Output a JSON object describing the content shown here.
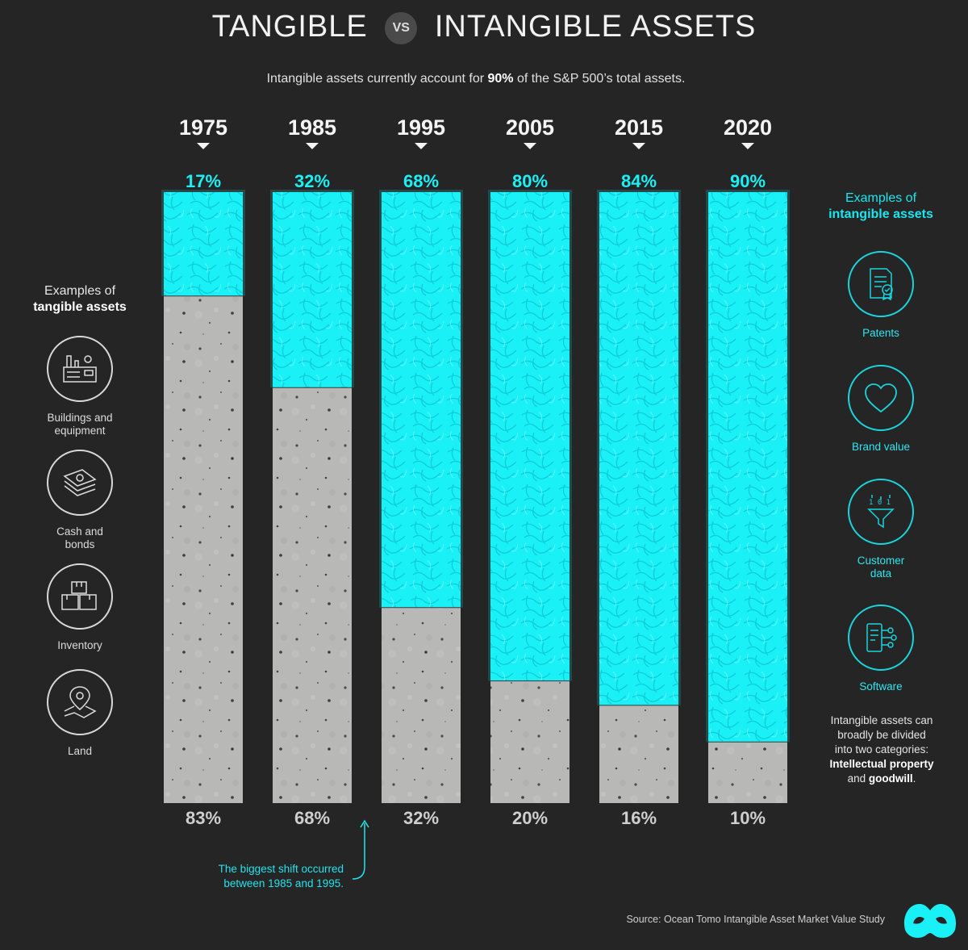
{
  "title": {
    "left": "TANGIBLE",
    "vs": "VS",
    "right": "INTANGIBLE ASSETS"
  },
  "subtitle": {
    "pre": "Intangible assets currently account for ",
    "bold": "90%",
    "post": " of the S&P 500’s total assets."
  },
  "chart_data": {
    "type": "bar",
    "stacked": true,
    "categories": [
      "1975",
      "1985",
      "1995",
      "2005",
      "2015",
      "2020"
    ],
    "series": [
      {
        "name": "",
        "values": [
          17,
          32,
          68,
          80,
          84,
          90
        ],
        "color": "#19f1f7"
      },
      {
        "name": "",
        "values": [
          83,
          68,
          32,
          20,
          16,
          10
        ],
        "color": "#b9b9b9"
      }
    ],
    "top_labels": [
      "17%",
      "32%",
      "68%",
      "80%",
      "84%",
      "90%"
    ],
    "bottom_labels": [
      "83%",
      "68%",
      "32%",
      "20%",
      "16%",
      "10%"
    ],
    "ylim": [
      0,
      100
    ],
    "annotation": "The biggest shift occurred between 1985 and 1995."
  },
  "tangible": {
    "heading_line1": "Examples of",
    "heading_line2": "tangible assets",
    "items": [
      {
        "label_line1": "Buildings and",
        "label_line2": "equipment",
        "icon": "factory-icon"
      },
      {
        "label_line1": "Cash and",
        "label_line2": "bonds",
        "icon": "cash-icon"
      },
      {
        "label_line1": "Inventory",
        "label_line2": "",
        "icon": "boxes-icon"
      },
      {
        "label_line1": "Land",
        "label_line2": "",
        "icon": "map-pin-icon"
      }
    ]
  },
  "intangible": {
    "heading_line1": "Examples of",
    "heading_line2": "intangible assets",
    "items": [
      {
        "label_line1": "Patents",
        "label_line2": "",
        "icon": "certificate-icon"
      },
      {
        "label_line1": "Brand value",
        "label_line2": "",
        "icon": "heart-icon"
      },
      {
        "label_line1": "Customer",
        "label_line2": "data",
        "icon": "data-funnel-icon"
      },
      {
        "label_line1": "Software",
        "label_line2": "",
        "icon": "software-icon"
      }
    ]
  },
  "note": {
    "line1": "Intangible assets can",
    "line2": "broadly be divided",
    "line3": "into two categories:",
    "bold1": "Intellectual property",
    "and": " and ",
    "bold2": "goodwill",
    "end": "."
  },
  "shift_note": {
    "line1": "The biggest shift occurred",
    "line2": "between 1985 and 1995."
  },
  "source": "Source: Ocean Tomo Intangible Asset Market Value Study",
  "colors": {
    "cyan": "#19f1f7",
    "concrete": "#b9b9b9",
    "background": "#252525"
  }
}
